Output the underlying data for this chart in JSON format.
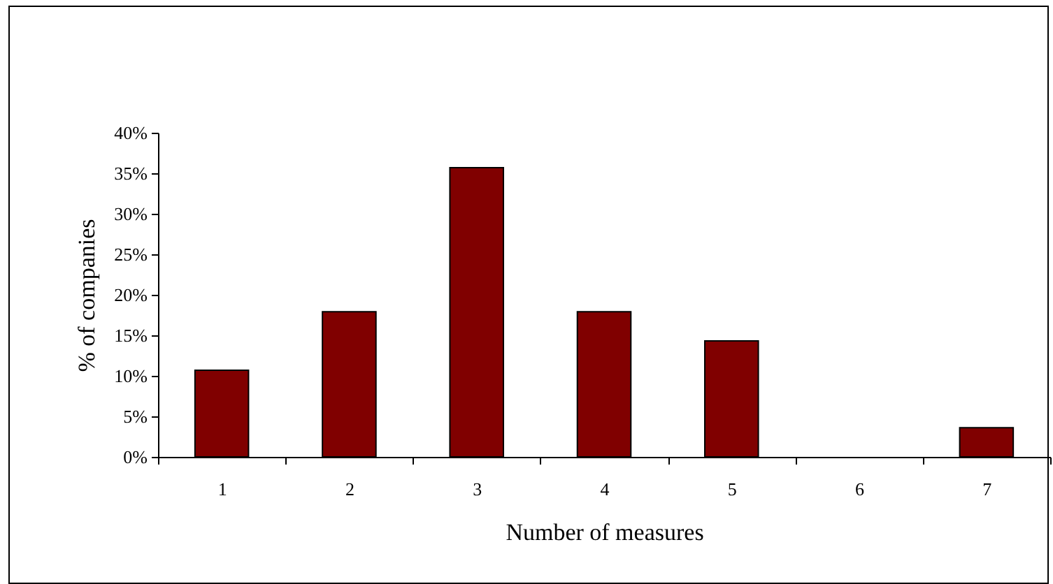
{
  "chart_data": {
    "type": "bar",
    "xlabel": "Number of measures",
    "ylabel": "% of companies",
    "categories": [
      "1",
      "2",
      "3",
      "4",
      "5",
      "6",
      "7"
    ],
    "values": [
      10.7,
      17.9,
      35.7,
      17.9,
      14.3,
      0,
      3.6
    ],
    "color": "#800000",
    "ylim": [
      0,
      40
    ],
    "yticks": [
      {
        "value": 0,
        "label": "0%"
      },
      {
        "value": 5,
        "label": "5%"
      },
      {
        "value": 10,
        "label": "10%"
      },
      {
        "value": 15,
        "label": "15%"
      },
      {
        "value": 20,
        "label": "20%"
      },
      {
        "value": 25,
        "label": "25%"
      },
      {
        "value": 30,
        "label": "30%"
      },
      {
        "value": 35,
        "label": "35%"
      },
      {
        "value": 40,
        "label": "40%"
      }
    ],
    "grid": false
  }
}
